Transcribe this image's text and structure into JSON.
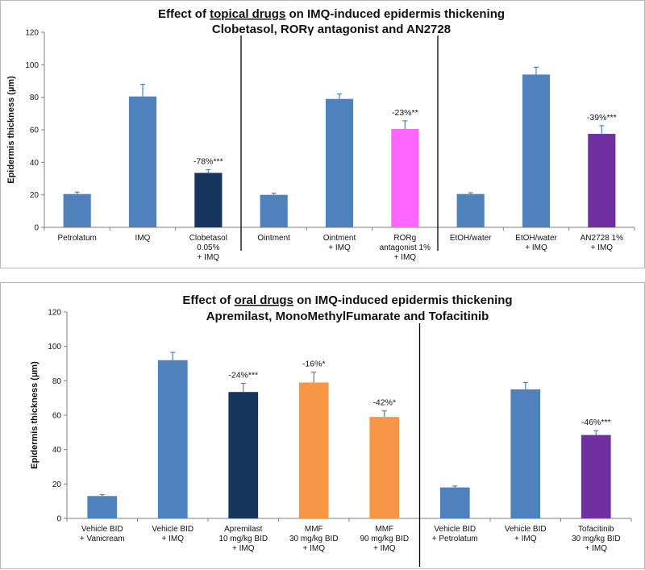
{
  "chart_data": [
    {
      "type": "bar",
      "title": "Effect of topical drugs on IMQ-induced epidermis thickening",
      "title_underlined_phrase": "topical drugs",
      "subtitle": "Clobetasol, RORγ antagonist and AN2728",
      "ylabel": "Epidermis thickness (µm)",
      "xlabel": "",
      "ylim": [
        0,
        120
      ],
      "yticks": [
        0,
        20,
        40,
        60,
        80,
        100,
        120
      ],
      "grid": false,
      "categories": [
        [
          "Petrolatum"
        ],
        [
          "IMQ"
        ],
        [
          "Clobetasol",
          "0.05%",
          "+ IMQ"
        ],
        [
          "Ointment"
        ],
        [
          "Ointment",
          "+ IMQ"
        ],
        [
          "RORg",
          "antagonist 1%",
          "+ IMQ"
        ],
        [
          "EtOH/water"
        ],
        [
          "EtOH/water",
          "+ IMQ"
        ],
        [
          "AN2728 1%",
          "+ IMQ"
        ]
      ],
      "values": [
        20.5,
        80.5,
        33.5,
        20,
        79,
        60.5,
        20.5,
        94,
        57.5
      ],
      "errors": [
        1.2,
        7.5,
        2,
        1,
        3,
        5,
        0.8,
        4.5,
        5
      ],
      "colors": [
        "#4F81BD",
        "#4F81BD",
        "#17365D",
        "#4F81BD",
        "#4F81BD",
        "#FF66FF",
        "#4F81BD",
        "#4F81BD",
        "#7030A0"
      ],
      "data_labels": [
        "",
        "",
        "-78%***",
        "",
        "",
        "-23%**",
        "",
        "",
        "-39%***"
      ],
      "separators_after": [
        3,
        6
      ]
    },
    {
      "type": "bar",
      "title": "Effect of oral drugs on IMQ-induced epidermis thickening",
      "title_underlined_phrase": "oral drugs",
      "subtitle": "Apremilast, MonoMethylFumarate and Tofacitinib",
      "ylabel": "Epidermis thickness (µm)",
      "xlabel": "",
      "ylim": [
        0,
        120
      ],
      "yticks": [
        0,
        20,
        40,
        60,
        80,
        100,
        120
      ],
      "grid": false,
      "categories": [
        [
          "Vehicle BID",
          "+ Vanicream"
        ],
        [
          "Vehicle BID",
          "+ IMQ"
        ],
        [
          "Apremilast",
          "10 mg/kg BID",
          "+ IMQ"
        ],
        [
          "MMF",
          "30 mg/kg BID",
          "+ IMQ"
        ],
        [
          "MMF",
          "90 mg/kg BID",
          "+ IMQ"
        ],
        [
          "Vehicle BID",
          "+ Petrolatum"
        ],
        [
          "Vehicle BID",
          "+ IMQ"
        ],
        [
          "Tofacitinib",
          "30 mg/kg BID",
          "+ IMQ"
        ]
      ],
      "values": [
        13,
        92,
        73.5,
        79,
        59,
        18,
        75,
        48.5
      ],
      "errors": [
        0.8,
        4.5,
        5,
        6,
        3.5,
        0.8,
        4,
        2.5
      ],
      "colors": [
        "#4F81BD",
        "#4F81BD",
        "#17365D",
        "#F79646",
        "#F79646",
        "#4F81BD",
        "#4F81BD",
        "#7030A0"
      ],
      "data_labels": [
        "",
        "",
        "-24%***",
        "-16%*",
        "-42%*",
        "",
        "",
        "-46%***"
      ],
      "separators_after": [
        5
      ]
    }
  ]
}
